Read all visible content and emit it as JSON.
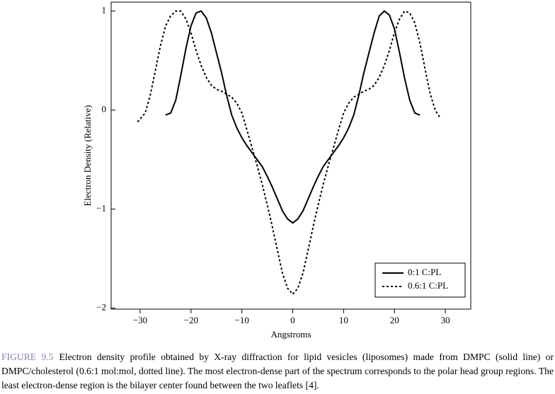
{
  "chart_data": {
    "type": "line",
    "xlabel": "Angstroms",
    "ylabel": "Electron Density (Relative)",
    "xlim": [
      -35.7,
      35
    ],
    "ylim": [
      -2.01,
      1.09
    ],
    "xticks": [
      {
        "value": -30,
        "label": "−30"
      },
      {
        "value": -20,
        "label": "−20"
      },
      {
        "value": -10,
        "label": "−10"
      },
      0,
      10,
      20,
      30
    ],
    "yticks": [
      {
        "value": -2,
        "label": "−2"
      },
      {
        "value": -1,
        "label": "−1"
      },
      0,
      1
    ],
    "legend": "lower right",
    "series": [
      {
        "name": "0:1 C:PL",
        "color": "#000000",
        "line_style": "solid",
        "x": [
          -25,
          -24,
          -23,
          -22,
          -21,
          -20,
          -19,
          -18,
          -17,
          -16,
          -15,
          -14,
          -13,
          -12,
          -11,
          -10,
          -9,
          -8,
          -7,
          -6,
          -5,
          -4,
          -3,
          -2,
          -1,
          0,
          1,
          2,
          3,
          4,
          5,
          6,
          7,
          8,
          9,
          10,
          11,
          12,
          13,
          14,
          15,
          16,
          17,
          18,
          19,
          20,
          21,
          22,
          23,
          24,
          25
        ],
        "values": [
          -0.05,
          -0.03,
          0.1,
          0.35,
          0.62,
          0.85,
          0.98,
          1.0,
          0.93,
          0.78,
          0.58,
          0.38,
          0.15,
          -0.05,
          -0.18,
          -0.28,
          -0.36,
          -0.43,
          -0.5,
          -0.57,
          -0.67,
          -0.78,
          -0.9,
          -1.02,
          -1.1,
          -1.14,
          -1.1,
          -1.02,
          -0.9,
          -0.78,
          -0.67,
          -0.57,
          -0.5,
          -0.43,
          -0.36,
          -0.28,
          -0.18,
          -0.05,
          0.15,
          0.38,
          0.58,
          0.78,
          0.95,
          1.0,
          0.96,
          0.82,
          0.58,
          0.32,
          0.1,
          -0.03,
          -0.05
        ]
      },
      {
        "name": "0.6:1 C:PL",
        "color": "#000000",
        "line_style": "dotted",
        "x": [
          -30.5,
          -29,
          -28,
          -27,
          -26,
          -25,
          -24,
          -23,
          -22,
          -21,
          -20,
          -19,
          -18,
          -17,
          -16,
          -15,
          -14,
          -13,
          -12,
          -11,
          -10,
          -9,
          -8,
          -7,
          -6,
          -5,
          -4,
          -3,
          -2,
          -1,
          0,
          1,
          2,
          3,
          4,
          5,
          6,
          7,
          8,
          9,
          10,
          11,
          12,
          13,
          14,
          15,
          16,
          17,
          18,
          19,
          20,
          21,
          22,
          23,
          24,
          25,
          26,
          27,
          28,
          29
        ],
        "values": [
          -0.12,
          -0.03,
          0.15,
          0.4,
          0.65,
          0.85,
          0.95,
          1.0,
          1.0,
          0.92,
          0.78,
          0.6,
          0.45,
          0.33,
          0.25,
          0.21,
          0.19,
          0.16,
          0.13,
          0.07,
          -0.03,
          -0.2,
          -0.38,
          -0.56,
          -0.75,
          -0.96,
          -1.18,
          -1.42,
          -1.65,
          -1.8,
          -1.86,
          -1.8,
          -1.65,
          -1.42,
          -1.18,
          -0.96,
          -0.75,
          -0.56,
          -0.38,
          -0.2,
          -0.03,
          0.07,
          0.13,
          0.16,
          0.19,
          0.21,
          0.25,
          0.33,
          0.45,
          0.6,
          0.78,
          0.92,
          1.0,
          0.98,
          0.88,
          0.68,
          0.42,
          0.17,
          0.0,
          -0.08
        ]
      }
    ]
  },
  "caption": {
    "label": "FIGURE 9.5",
    "text": "Electron density profile obtained by X-ray diffraction for lipid vesicles (liposomes) made from DMPC (solid line) or DMPC/cholesterol (0.6:1 mol:mol, dotted line). The most electron-dense part of the spectrum corresponds to the polar head group regions. The least electron-dense region is the bilayer center found between the two leaflets [4]."
  }
}
